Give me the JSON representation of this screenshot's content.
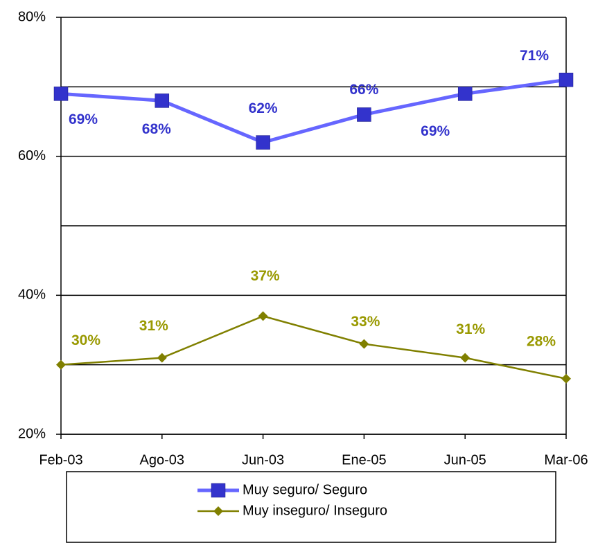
{
  "chart_data": {
    "type": "line",
    "categories": [
      "Feb-03",
      "Ago-03",
      "Jun-03",
      "Ene-05",
      "Jun-05",
      "Mar-06"
    ],
    "series": [
      {
        "name": "Muy seguro/ Seguro",
        "color": "#6666ff",
        "marker_color": "#3333cc",
        "label_color": "#3333cc",
        "marker": "square",
        "values": [
          69,
          68,
          62,
          66,
          69,
          71
        ],
        "value_labels": [
          "69%",
          "68%",
          "62%",
          "66%",
          "69%",
          "71%"
        ]
      },
      {
        "name": "Muy inseguro/ Inseguro",
        "color": "#808000",
        "marker_color": "#808000",
        "label_color": "#999900",
        "marker": "diamond",
        "values": [
          30,
          31,
          37,
          33,
          31,
          28
        ],
        "value_labels": [
          "30%",
          "31%",
          "37%",
          "33%",
          "31%",
          "28%"
        ]
      }
    ],
    "ylim": [
      20,
      80
    ],
    "yticks": [
      {
        "value": 20,
        "label": "20%"
      },
      {
        "value": 40,
        "label": "40%"
      },
      {
        "value": 60,
        "label": "60%"
      },
      {
        "value": 80,
        "label": "80%"
      }
    ],
    "y_minor_gridlines": [
      30,
      50,
      70
    ],
    "grid": true,
    "legend": "bottom"
  }
}
